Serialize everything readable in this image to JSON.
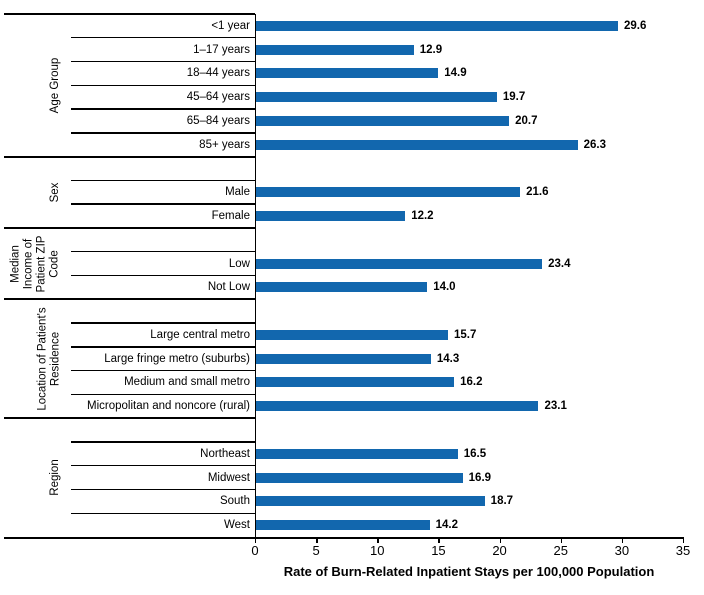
{
  "chart_data": {
    "type": "bar",
    "orientation": "horizontal",
    "title": "",
    "xlabel": "Rate of Burn-Related Inpatient Stays per 100,000 Population",
    "ylabel": "",
    "xlim": [
      0,
      35
    ],
    "xticks": [
      0,
      5,
      10,
      15,
      20,
      25,
      30,
      35
    ],
    "grid": "off",
    "legend": "none",
    "bar_color": "#1267ae",
    "line_color": "#000000",
    "value_labels_shown": true,
    "groups": [
      {
        "label": "Age Group",
        "label_lines": [
          "Age Group"
        ],
        "categories": [
          "<1 year",
          "1–17 years",
          "18–44 years",
          "45–64 years",
          "65–84 years",
          "85+ years"
        ],
        "values": [
          29.6,
          12.9,
          14.9,
          19.7,
          20.7,
          26.3
        ]
      },
      {
        "label": "Sex",
        "label_lines": [
          "Sex"
        ],
        "categories": [
          "Male",
          "Female"
        ],
        "values": [
          21.6,
          12.2
        ]
      },
      {
        "label": "Median Income of Patient ZIP Code",
        "label_lines": [
          "Median",
          "Income of",
          "Patient ZIP",
          "Code"
        ],
        "categories": [
          "Low",
          "Not Low"
        ],
        "values": [
          23.4,
          14.0
        ]
      },
      {
        "label": "Location of Patient's Residence",
        "label_lines": [
          "Location of Patient's",
          "Residence"
        ],
        "categories": [
          "Large central metro",
          "Large fringe metro (suburbs)",
          "Medium and small metro",
          "Micropolitan and noncore (rural)"
        ],
        "values": [
          15.7,
          14.3,
          16.2,
          23.1
        ]
      },
      {
        "label": "Region",
        "label_lines": [
          "Region"
        ],
        "categories": [
          "Northeast",
          "Midwest",
          "South",
          "West"
        ],
        "values": [
          16.5,
          16.9,
          18.7,
          14.2
        ]
      }
    ]
  }
}
